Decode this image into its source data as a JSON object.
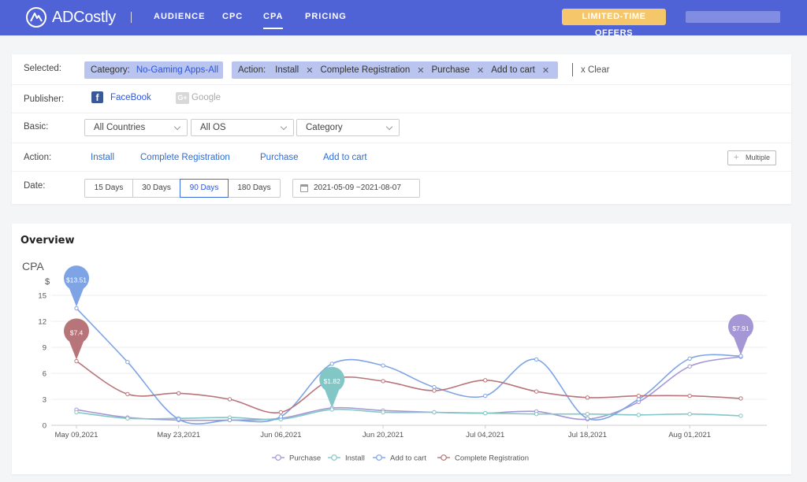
{
  "header": {
    "brand": "ADCostly",
    "nav": [
      {
        "label": "AUDIENCE",
        "active": false
      },
      {
        "label": "CPC",
        "active": false
      },
      {
        "label": "CPA",
        "active": true
      },
      {
        "label": "PRICING",
        "active": false
      }
    ],
    "offer_label": "LIMITED-TIME OFFERS",
    "brand_color": "#4f62d6"
  },
  "filters": {
    "selected_label": "Selected:",
    "category_tag": {
      "label": "Category:",
      "value": "No-Gaming Apps-All"
    },
    "action_tag": {
      "label": "Action:",
      "items": [
        "Install",
        "Complete Registration",
        "Purchase",
        "Add to cart"
      ]
    },
    "clear_label": "x Clear",
    "publisher_label": "Publisher:",
    "publishers": [
      {
        "name": "FaceBook",
        "icon": "facebook-icon",
        "active": true
      },
      {
        "name": "Google",
        "icon": "google-plus-icon",
        "active": false
      }
    ],
    "basic_label": "Basic:",
    "selects": [
      "All Countries",
      "All OS",
      "Category"
    ],
    "action_label": "Action:",
    "actions": [
      "Install",
      "Complete Registration",
      "Purchase",
      "Add to cart"
    ],
    "multiple_label": "Multiple",
    "date_label": "Date:",
    "day_options": [
      {
        "label": "15 Days",
        "active": false
      },
      {
        "label": "30 Days",
        "active": false
      },
      {
        "label": "90 Days",
        "active": true
      },
      {
        "label": "180 Days",
        "active": false
      }
    ],
    "date_range": "2021-05-09  ~2021-08-07"
  },
  "overview": {
    "title": "Overview"
  },
  "chart_data": {
    "type": "line",
    "title": "CPA",
    "ylabel": "$",
    "xlabel": "",
    "ylim": [
      0,
      15
    ],
    "yticks": [
      0,
      3,
      6,
      9,
      12,
      15
    ],
    "x_tick_labels": [
      "May 09,2021",
      "May 23,2021",
      "Jun 06,2021",
      "Jun 20,2021",
      "Jul 04,2021",
      "Jul 18,2021",
      "Aug 01,2021"
    ],
    "x": [
      "2021-05-09",
      "2021-05-16",
      "2021-05-23",
      "2021-05-30",
      "2021-06-06",
      "2021-06-13",
      "2021-06-20",
      "2021-06-27",
      "2021-07-04",
      "2021-07-11",
      "2021-07-18",
      "2021-07-25",
      "2021-08-01",
      "2021-08-08"
    ],
    "grid": true,
    "legend": "bottom-center",
    "series": [
      {
        "name": "Purchase",
        "color": "#a597d6",
        "values": [
          1.8,
          0.9,
          0.6,
          0.6,
          0.8,
          2.0,
          1.7,
          1.5,
          1.4,
          1.6,
          0.7,
          2.7,
          6.8,
          7.91
        ]
      },
      {
        "name": "Install",
        "color": "#82c7c6",
        "values": [
          1.5,
          0.8,
          0.8,
          0.9,
          0.7,
          1.82,
          1.5,
          1.5,
          1.4,
          1.3,
          1.3,
          1.2,
          1.3,
          1.1
        ]
      },
      {
        "name": "Add to cart",
        "color": "#7ea4e6",
        "values": [
          13.51,
          7.3,
          0.7,
          0.6,
          1.0,
          7.1,
          6.9,
          4.4,
          3.4,
          7.6,
          0.8,
          3.0,
          7.7,
          8.0
        ]
      },
      {
        "name": "Complete Registration",
        "color": "#b87579",
        "values": [
          7.4,
          3.6,
          3.7,
          3.0,
          1.5,
          5.3,
          5.1,
          4.0,
          5.2,
          3.9,
          3.2,
          3.4,
          3.4,
          3.1
        ]
      }
    ],
    "annotations": [
      {
        "series": "Add to cart",
        "x": "2021-05-09",
        "value": 13.51,
        "label": "$13.51"
      },
      {
        "series": "Complete Registration",
        "x": "2021-05-09",
        "value": 7.4,
        "label": "$7.4"
      },
      {
        "series": "Install",
        "x": "2021-06-13",
        "value": 1.82,
        "label": "$1.82"
      },
      {
        "series": "Purchase",
        "x": "2021-08-08",
        "value": 7.91,
        "label": "$7.91"
      }
    ]
  }
}
